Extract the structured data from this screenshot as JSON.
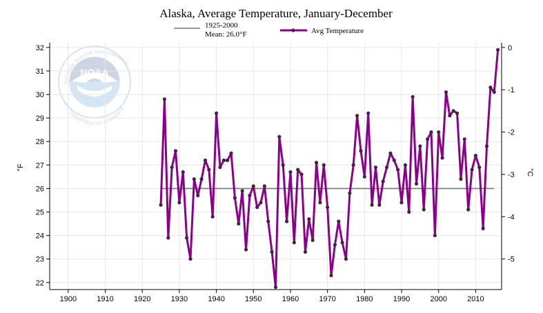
{
  "chart_data": {
    "type": "line",
    "title": "Alaska, Average Temperature, January-December",
    "ylabel": "°F",
    "ylabel_right": "°C",
    "xlabel": "",
    "xlim": [
      1895,
      2017
    ],
    "ylim": [
      21.7,
      32.2
    ],
    "ylim_right_c": [
      -5.722,
      0.111
    ],
    "x_ticks": [
      1900,
      1910,
      1920,
      1930,
      1940,
      1950,
      1960,
      1970,
      1980,
      1990,
      2000,
      2010
    ],
    "y_ticks": [
      22,
      23,
      24,
      25,
      26,
      27,
      28,
      29,
      30,
      31,
      32
    ],
    "y_ticks_right": [
      0,
      -1,
      -2,
      -3,
      -4,
      -5
    ],
    "grid": true,
    "legend": [
      {
        "label_line1": "1925-2000",
        "label_line2": "Mean: 26.0°F",
        "kind": "mean"
      },
      {
        "label": "Avg Temperature",
        "kind": "series"
      }
    ],
    "mean": {
      "start": 1925,
      "end": 2015,
      "value": 26.0
    },
    "series": [
      {
        "name": "Avg Temperature",
        "color": "#8b008b",
        "marker_color": "#3a2a3a",
        "x": [
          1925,
          1926,
          1927,
          1928,
          1929,
          1930,
          1931,
          1932,
          1933,
          1934,
          1935,
          1936,
          1937,
          1938,
          1939,
          1940,
          1941,
          1942,
          1943,
          1944,
          1945,
          1946,
          1947,
          1948,
          1949,
          1950,
          1951,
          1952,
          1953,
          1954,
          1955,
          1956,
          1957,
          1958,
          1959,
          1960,
          1961,
          1962,
          1963,
          1964,
          1965,
          1966,
          1967,
          1968,
          1969,
          1970,
          1971,
          1972,
          1973,
          1974,
          1975,
          1976,
          1977,
          1978,
          1979,
          1980,
          1981,
          1982,
          1983,
          1984,
          1985,
          1986,
          1987,
          1988,
          1989,
          1990,
          1991,
          1992,
          1993,
          1994,
          1995,
          1996,
          1997,
          1998,
          1999,
          2000,
          2001,
          2002,
          2003,
          2004,
          2005,
          2006,
          2007,
          2008,
          2009,
          2010,
          2011,
          2012,
          2013,
          2014,
          2015,
          2016
        ],
        "values": [
          25.3,
          29.8,
          23.9,
          26.9,
          27.6,
          25.4,
          26.7,
          23.9,
          23.0,
          26.4,
          25.7,
          26.4,
          27.2,
          26.8,
          24.8,
          29.2,
          26.9,
          27.2,
          27.2,
          27.5,
          25.6,
          24.5,
          25.9,
          23.4,
          25.7,
          26.1,
          25.2,
          25.4,
          26.1,
          24.6,
          23.3,
          21.8,
          28.2,
          27.0,
          24.6,
          26.7,
          23.7,
          26.8,
          26.6,
          23.3,
          24.7,
          23.8,
          27.1,
          25.4,
          27.0,
          25.2,
          22.3,
          23.6,
          24.6,
          23.7,
          23.0,
          25.8,
          27.0,
          29.1,
          27.6,
          26.5,
          29.2,
          25.3,
          26.9,
          25.3,
          26.3,
          26.9,
          27.5,
          27.2,
          26.8,
          25.4,
          27.0,
          25.0,
          29.9,
          26.2,
          27.8,
          25.1,
          28.1,
          28.4,
          24.0,
          28.4,
          27.3,
          30.1,
          29.1,
          29.3,
          29.2,
          26.4,
          28.1,
          25.1,
          26.8,
          27.4,
          26.9,
          24.3,
          27.8,
          30.3,
          30.1,
          31.9
        ]
      }
    ]
  },
  "logo": {
    "name": "NOAA",
    "ring_text": "NATIONAL OCEANIC AND ATMOSPHERIC ADMINISTRATION",
    "bottom_text": "U.S. DEPARTMENT OF COMMERCE"
  }
}
